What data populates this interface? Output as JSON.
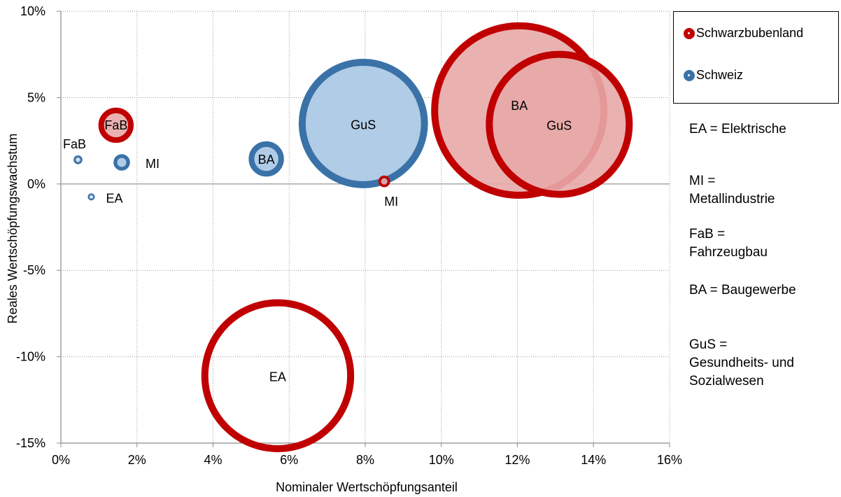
{
  "chart_data": {
    "type": "bubble",
    "xlabel": "Nominaler Wertschöpfungsanteil",
    "ylabel": "Reales  Wertschöpfungswachstum",
    "xlim": [
      0,
      16
    ],
    "ylim": [
      -15,
      10
    ],
    "x_ticks": [
      "0%",
      "2%",
      "4%",
      "6%",
      "8%",
      "10%",
      "12%",
      "14%",
      "16%"
    ],
    "y_ticks": [
      "10%",
      "5%",
      "0%",
      "-5%",
      "-10%",
      "-15%"
    ],
    "grid": true,
    "legend_position": "top-right",
    "series": [
      {
        "name": "Schwarzbubenland",
        "color": "#c00000",
        "fill": "#e8a9a9",
        "points": [
          {
            "label": "FaB",
            "x": 1.45,
            "y": 3.4,
            "size": 0.6,
            "filled": true
          },
          {
            "label": "MI",
            "x": 8.5,
            "y": 0.15,
            "size": 0.2,
            "filled": true
          },
          {
            "label": "BA",
            "x": 12.05,
            "y": 4.25,
            "size": 3.0,
            "filled": true
          },
          {
            "label": "GuS",
            "x": 13.1,
            "y": 3.45,
            "size": 2.5,
            "filled": true
          },
          {
            "label": "EA",
            "x": 5.7,
            "y": -11.1,
            "size": 2.6,
            "filled": false
          }
        ]
      },
      {
        "name": "Schweiz",
        "color": "#3a72a8",
        "fill": "#a9c7e3",
        "points": [
          {
            "label": "FaB",
            "x": 0.45,
            "y": 1.4,
            "size": 0.15,
            "filled": true
          },
          {
            "label": "MI",
            "x": 1.6,
            "y": 1.25,
            "size": 0.28,
            "filled": true
          },
          {
            "label": "EA",
            "x": 0.8,
            "y": -0.75,
            "size": 0.12,
            "filled": true
          },
          {
            "label": "BA",
            "x": 5.4,
            "y": 1.45,
            "size": 0.6,
            "filled": true
          },
          {
            "label": "GuS",
            "x": 7.95,
            "y": 3.5,
            "size": 2.2,
            "filled": true
          }
        ]
      }
    ]
  },
  "notes": [
    "EA = Elektrische",
    "MI =\nMetallindustrie",
    "FaB =\nFahrzeugbau",
    "BA = Baugewerbe",
    "GuS =\nGesundheits- und\nSozialwesen"
  ]
}
